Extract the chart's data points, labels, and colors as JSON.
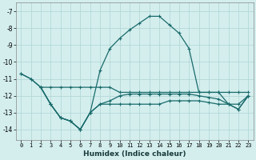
{
  "xlabel": "Humidex (Indice chaleur)",
  "bg_color": "#d4eeee",
  "grid_color": "#aed4d4",
  "line_color": "#1a6b6b",
  "xlim": [
    -0.5,
    23.5
  ],
  "ylim": [
    -14.6,
    -6.5
  ],
  "yticks": [
    -7,
    -8,
    -9,
    -10,
    -11,
    -12,
    -13,
    -14
  ],
  "xticks": [
    0,
    1,
    2,
    3,
    4,
    5,
    6,
    7,
    8,
    9,
    10,
    11,
    12,
    13,
    14,
    15,
    16,
    17,
    18,
    19,
    20,
    21,
    22,
    23
  ],
  "curve_main_x": [
    0,
    1,
    2,
    3,
    4,
    5,
    6,
    7,
    8,
    9,
    10,
    11,
    12,
    13,
    14,
    15,
    16,
    17,
    18,
    19,
    20,
    21,
    22,
    23
  ],
  "curve_main_y": [
    -10.7,
    -11.0,
    -11.5,
    -12.5,
    -13.3,
    -13.5,
    -14.0,
    -13.0,
    -10.5,
    -9.2,
    -8.6,
    -8.1,
    -7.7,
    -7.3,
    -7.3,
    -7.8,
    -8.3,
    -9.2,
    -11.8,
    -11.8,
    -11.8,
    -12.5,
    -12.8,
    -12.0
  ],
  "curve_mid_x": [
    0,
    1,
    2,
    3,
    4,
    5,
    6,
    7,
    8,
    9,
    10,
    11,
    12,
    13,
    14,
    15,
    16,
    17,
    18,
    19,
    20,
    21,
    22,
    23
  ],
  "curve_mid_y": [
    -10.7,
    -11.0,
    -11.5,
    -12.5,
    -13.3,
    -13.5,
    -14.0,
    -13.0,
    -12.5,
    -12.3,
    -12.0,
    -11.9,
    -11.9,
    -11.9,
    -11.9,
    -11.9,
    -11.9,
    -11.9,
    -12.0,
    -12.1,
    -12.2,
    -12.5,
    -12.8,
    -12.0
  ],
  "curve_low_x": [
    2,
    3,
    4,
    5,
    6,
    7,
    8,
    9,
    10,
    11,
    12,
    13,
    14,
    15,
    16,
    17,
    18,
    19,
    20,
    21,
    22,
    23
  ],
  "curve_low_y": [
    -11.5,
    -12.5,
    -13.3,
    -13.5,
    -14.0,
    -13.0,
    -12.5,
    -12.5,
    -12.5,
    -12.5,
    -12.5,
    -12.5,
    -12.5,
    -12.3,
    -12.3,
    -12.3,
    -12.3,
    -12.4,
    -12.5,
    -12.5,
    -12.5,
    -12.0
  ],
  "curve_flat_x": [
    2,
    3,
    4,
    5,
    6,
    7,
    8,
    9,
    10,
    11,
    12,
    13,
    14,
    15,
    16,
    17,
    18,
    19,
    20,
    21,
    22,
    23
  ],
  "curve_flat_y": [
    -11.5,
    -11.5,
    -11.5,
    -11.5,
    -11.5,
    -11.5,
    -11.5,
    -11.5,
    -11.8,
    -11.8,
    -11.8,
    -11.8,
    -11.8,
    -11.8,
    -11.8,
    -11.8,
    -11.8,
    -11.8,
    -11.8,
    -11.8,
    -11.8,
    -11.8
  ]
}
